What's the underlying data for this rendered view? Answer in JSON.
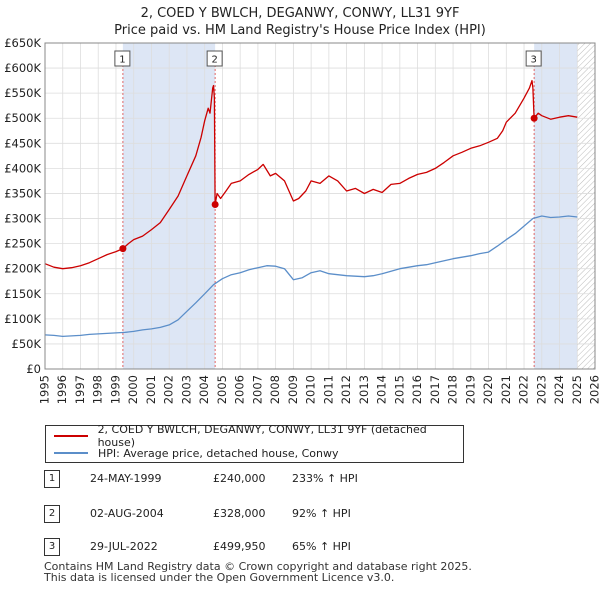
{
  "title_line1": "2, COED Y BWLCH, DEGANWY, CONWY, LL31 9YF",
  "title_line2": "Price paid vs. HM Land Registry's House Price Index (HPI)",
  "legend": {
    "property": "2, COED Y BWLCH, DEGANWY, CONWY, LL31 9YF (detached house)",
    "hpi": "HPI: Average price, detached house, Conwy"
  },
  "sales": [
    {
      "num": "1",
      "date": "24-MAY-1999",
      "price": "£240,000",
      "hpi": "233% ↑ HPI"
    },
    {
      "num": "2",
      "date": "02-AUG-2004",
      "price": "£328,000",
      "hpi": "92% ↑ HPI"
    },
    {
      "num": "3",
      "date": "29-JUL-2022",
      "price": "£499,950",
      "hpi": "65% ↑ HPI"
    }
  ],
  "footer": {
    "line1": "Contains HM Land Registry data © Crown copyright and database right 2025.",
    "line2": "This data is licensed under the Open Government Licence v3.0."
  },
  "chart_data": {
    "type": "line",
    "title": "2, COED Y BWLCH, DEGANWY, CONWY, LL31 9YF",
    "subtitle": "Price paid vs. HM Land Registry's House Price Index (HPI)",
    "xlim": [
      1995,
      2026
    ],
    "ylim": [
      0,
      650000
    ],
    "x_ticks": [
      1995,
      1996,
      1997,
      1998,
      1999,
      2000,
      2001,
      2002,
      2003,
      2004,
      2005,
      2006,
      2007,
      2008,
      2009,
      2010,
      2011,
      2012,
      2013,
      2014,
      2015,
      2016,
      2017,
      2018,
      2019,
      2020,
      2021,
      2022,
      2023,
      2024,
      2025,
      2026
    ],
    "y_ticks": [
      0,
      50000,
      100000,
      150000,
      200000,
      250000,
      300000,
      350000,
      400000,
      450000,
      500000,
      550000,
      600000,
      650000
    ],
    "y_tick_labels": [
      "£0",
      "£50K",
      "£100K",
      "£150K",
      "£200K",
      "£250K",
      "£300K",
      "£350K",
      "£400K",
      "£450K",
      "£500K",
      "£550K",
      "£600K",
      "£650K"
    ],
    "colors": {
      "property": "#cc0000",
      "hpi": "#5b8ec9",
      "shade": "#dde6f5",
      "grid": "#dddddd"
    },
    "shaded_periods": [
      [
        1999.39,
        2004.59
      ],
      [
        2022.57,
        2025.0
      ]
    ],
    "future_hatch_from": 2025.0,
    "series": [
      {
        "name": "2, COED Y BWLCH, DEGANWY, CONWY, LL31 9YF (detached house)",
        "points": [
          [
            1995.0,
            210000
          ],
          [
            1995.5,
            203000
          ],
          [
            1996.0,
            200000
          ],
          [
            1996.5,
            202000
          ],
          [
            1997.0,
            206000
          ],
          [
            1997.5,
            212000
          ],
          [
            1998.0,
            220000
          ],
          [
            1998.5,
            228000
          ],
          [
            1999.0,
            234000
          ],
          [
            1999.39,
            240000
          ],
          [
            1999.7,
            250000
          ],
          [
            2000.0,
            258000
          ],
          [
            2000.5,
            265000
          ],
          [
            2001.0,
            278000
          ],
          [
            2001.5,
            292000
          ],
          [
            2002.0,
            318000
          ],
          [
            2002.5,
            345000
          ],
          [
            2003.0,
            385000
          ],
          [
            2003.5,
            425000
          ],
          [
            2003.8,
            462000
          ],
          [
            2004.0,
            495000
          ],
          [
            2004.2,
            520000
          ],
          [
            2004.3,
            510000
          ],
          [
            2004.45,
            560000
          ],
          [
            2004.5,
            565000
          ],
          [
            2004.55,
            540000
          ],
          [
            2004.59,
            328000
          ],
          [
            2004.7,
            350000
          ],
          [
            2004.9,
            340000
          ],
          [
            2005.2,
            355000
          ],
          [
            2005.5,
            370000
          ],
          [
            2006.0,
            375000
          ],
          [
            2006.5,
            388000
          ],
          [
            2007.0,
            398000
          ],
          [
            2007.3,
            408000
          ],
          [
            2007.7,
            385000
          ],
          [
            2008.0,
            390000
          ],
          [
            2008.5,
            375000
          ],
          [
            2009.0,
            335000
          ],
          [
            2009.3,
            340000
          ],
          [
            2009.7,
            355000
          ],
          [
            2010.0,
            375000
          ],
          [
            2010.5,
            370000
          ],
          [
            2011.0,
            385000
          ],
          [
            2011.5,
            375000
          ],
          [
            2012.0,
            355000
          ],
          [
            2012.5,
            360000
          ],
          [
            2013.0,
            350000
          ],
          [
            2013.5,
            358000
          ],
          [
            2014.0,
            352000
          ],
          [
            2014.5,
            368000
          ],
          [
            2015.0,
            370000
          ],
          [
            2015.5,
            380000
          ],
          [
            2016.0,
            388000
          ],
          [
            2016.5,
            392000
          ],
          [
            2017.0,
            400000
          ],
          [
            2017.5,
            412000
          ],
          [
            2018.0,
            425000
          ],
          [
            2018.5,
            432000
          ],
          [
            2019.0,
            440000
          ],
          [
            2019.5,
            445000
          ],
          [
            2020.0,
            452000
          ],
          [
            2020.5,
            460000
          ],
          [
            2020.8,
            475000
          ],
          [
            2021.0,
            492000
          ],
          [
            2021.5,
            510000
          ],
          [
            2022.0,
            540000
          ],
          [
            2022.3,
            560000
          ],
          [
            2022.45,
            575000
          ],
          [
            2022.5,
            560000
          ],
          [
            2022.57,
            499950
          ],
          [
            2022.8,
            510000
          ],
          [
            2023.0,
            505000
          ],
          [
            2023.5,
            498000
          ],
          [
            2024.0,
            502000
          ],
          [
            2024.5,
            505000
          ],
          [
            2025.0,
            502000
          ]
        ]
      },
      {
        "name": "HPI: Average price, detached house, Conwy",
        "points": [
          [
            1995.0,
            68000
          ],
          [
            1995.5,
            67000
          ],
          [
            1996.0,
            65000
          ],
          [
            1996.5,
            66000
          ],
          [
            1997.0,
            67000
          ],
          [
            1997.5,
            69000
          ],
          [
            1998.0,
            70000
          ],
          [
            1998.5,
            71000
          ],
          [
            1999.0,
            72000
          ],
          [
            1999.5,
            73000
          ],
          [
            2000.0,
            75000
          ],
          [
            2000.5,
            78000
          ],
          [
            2001.0,
            80000
          ],
          [
            2001.5,
            83000
          ],
          [
            2002.0,
            88000
          ],
          [
            2002.5,
            98000
          ],
          [
            2003.0,
            115000
          ],
          [
            2003.5,
            132000
          ],
          [
            2004.0,
            150000
          ],
          [
            2004.5,
            168000
          ],
          [
            2005.0,
            180000
          ],
          [
            2005.5,
            188000
          ],
          [
            2006.0,
            192000
          ],
          [
            2006.5,
            198000
          ],
          [
            2007.0,
            202000
          ],
          [
            2007.5,
            206000
          ],
          [
            2008.0,
            205000
          ],
          [
            2008.5,
            200000
          ],
          [
            2009.0,
            178000
          ],
          [
            2009.5,
            182000
          ],
          [
            2010.0,
            192000
          ],
          [
            2010.5,
            196000
          ],
          [
            2011.0,
            190000
          ],
          [
            2011.5,
            188000
          ],
          [
            2012.0,
            186000
          ],
          [
            2012.5,
            185000
          ],
          [
            2013.0,
            184000
          ],
          [
            2013.5,
            186000
          ],
          [
            2014.0,
            190000
          ],
          [
            2014.5,
            195000
          ],
          [
            2015.0,
            200000
          ],
          [
            2015.5,
            203000
          ],
          [
            2016.0,
            206000
          ],
          [
            2016.5,
            208000
          ],
          [
            2017.0,
            212000
          ],
          [
            2017.5,
            216000
          ],
          [
            2018.0,
            220000
          ],
          [
            2018.5,
            223000
          ],
          [
            2019.0,
            226000
          ],
          [
            2019.5,
            230000
          ],
          [
            2020.0,
            233000
          ],
          [
            2020.5,
            245000
          ],
          [
            2021.0,
            258000
          ],
          [
            2021.5,
            270000
          ],
          [
            2022.0,
            285000
          ],
          [
            2022.5,
            300000
          ],
          [
            2023.0,
            305000
          ],
          [
            2023.5,
            302000
          ],
          [
            2024.0,
            303000
          ],
          [
            2024.5,
            305000
          ],
          [
            2025.0,
            303000
          ]
        ]
      }
    ],
    "sale_markers": [
      {
        "label": "1",
        "x": 1999.39,
        "y": 240000
      },
      {
        "label": "2",
        "x": 2004.59,
        "y": 328000
      },
      {
        "label": "3",
        "x": 2022.57,
        "y": 499950
      }
    ]
  }
}
